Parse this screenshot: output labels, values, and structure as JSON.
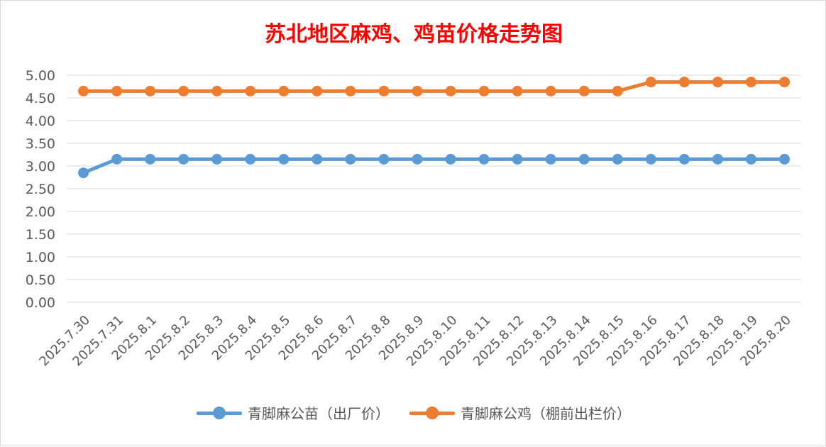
{
  "chart_data": {
    "type": "line",
    "title": "苏北地区麻鸡、鸡苗价格走势图",
    "categories": [
      "2025.7.30",
      "2025.7.31",
      "2025.8.1",
      "2025.8.2",
      "2025.8.3",
      "2025.8.4",
      "2025.8.5",
      "2025.8.6",
      "2025.8.7",
      "2025.8.8",
      "2025.8.9",
      "2025.8.10",
      "2025.8.11",
      "2025.8.12",
      "2025.8.13",
      "2025.8.14",
      "2025.8.15",
      "2025.8.16",
      "2025.8.17",
      "2025.8.18",
      "2025.8.19",
      "2025.8.20"
    ],
    "series": [
      {
        "name": "青脚麻公苗（出厂价）",
        "color": "#5b9bd5",
        "values": [
          2.85,
          3.15,
          3.15,
          3.15,
          3.15,
          3.15,
          3.15,
          3.15,
          3.15,
          3.15,
          3.15,
          3.15,
          3.15,
          3.15,
          3.15,
          3.15,
          3.15,
          3.15,
          3.15,
          3.15,
          3.15,
          3.15
        ]
      },
      {
        "name": "青脚麻公鸡（棚前出栏价）",
        "color": "#ed7d31",
        "values": [
          4.65,
          4.65,
          4.65,
          4.65,
          4.65,
          4.65,
          4.65,
          4.65,
          4.65,
          4.65,
          4.65,
          4.65,
          4.65,
          4.65,
          4.65,
          4.65,
          4.65,
          4.85,
          4.85,
          4.85,
          4.85,
          4.85
        ]
      }
    ],
    "y_ticks": [
      "0.00",
      "0.50",
      "1.00",
      "1.50",
      "2.00",
      "2.50",
      "3.00",
      "3.50",
      "4.00",
      "4.50",
      "5.00"
    ],
    "ylim": [
      0,
      5
    ],
    "grid": true,
    "legend_position": "bottom",
    "title_color": "#ff0000"
  }
}
